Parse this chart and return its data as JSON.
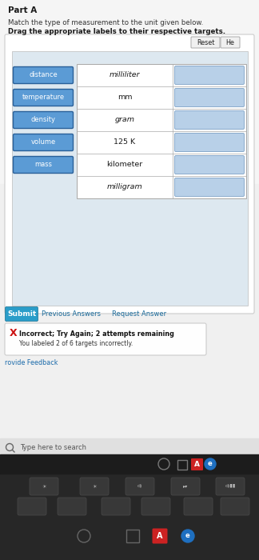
{
  "title": "Part A",
  "instruction1": "Match the type of measurement to the unit given below.",
  "instruction2": "Drag the appropriate labels to their respective targets.",
  "reset_btn": "Reset",
  "he_btn": "He",
  "left_labels": [
    "distance",
    "temperature",
    "density",
    "volume",
    "mass"
  ],
  "left_label_bg": "#5b9bd5",
  "left_label_border": "#2a6099",
  "left_label_text": "#ffffff",
  "middle_labels": [
    "milliliter",
    "mm",
    "gram",
    "125 K",
    "kilometer",
    "milligram"
  ],
  "middle_italic": [
    true,
    false,
    true,
    false,
    false,
    true
  ],
  "right_box_color": "#b8d0e8",
  "right_box_border": "#8aabcc",
  "submit_btn_text": "Submit",
  "submit_btn_bg": "#2a9dc9",
  "submit_btn_text_color": "#ffffff",
  "prev_ans_text": "Previous Answers",
  "req_ans_text": "Request Answer",
  "error_icon": "X",
  "error_text1": "Incorrect; Try Again; 2 attempts remaining",
  "error_text2": "You labeled 2 of 6 targets incorrectly.",
  "feedback_text": "rovide Feedback",
  "search_text": "Type here to search",
  "bg_color": "#f0f0f0",
  "content_bg": "#f5f5f5",
  "panel_bg": "#ffffff",
  "outer_panel_bg": "#dde8f0",
  "table_bg": "#ffffff",
  "table_border": "#aaaaaa",
  "taskbar_bg": "#1c1c1c",
  "search_bar_bg": "#e0e0e0",
  "keyboard_bg": "#272727",
  "key_bg": "#383838",
  "key_border": "#4a4a4a"
}
